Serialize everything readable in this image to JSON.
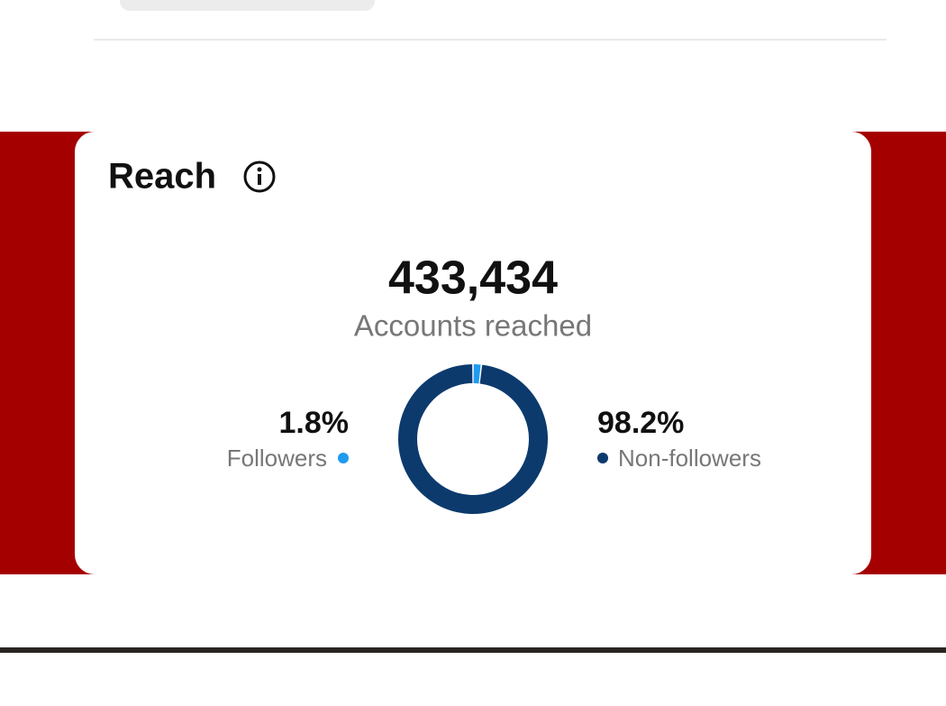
{
  "card": {
    "title": "Reach",
    "total": "433,434",
    "total_label": "Accounts reached"
  },
  "chart_data": {
    "type": "donut",
    "categories": [
      "Followers",
      "Non-followers"
    ],
    "values": [
      1.8,
      98.2
    ],
    "value_labels": [
      "1.8%",
      "98.2%"
    ],
    "colors": [
      "#1e9bf0",
      "#0c3a6d"
    ]
  }
}
